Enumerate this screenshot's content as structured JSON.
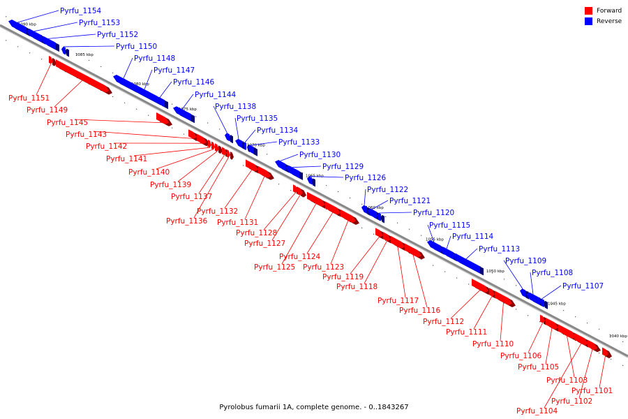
{
  "title": "Pyrolobus fumarii 1A, complete genome. - 0..1843267",
  "legend": {
    "forward": {
      "label": "Forward",
      "color": "#ff0000"
    },
    "reverse": {
      "label": "Reverse",
      "color": "#0000ff"
    }
  },
  "colors": {
    "forward": "#ff0000",
    "reverse": "#0000ff",
    "backbone": "#888888"
  },
  "tick_labels": [
    "1090 kbp",
    "1085 kbp",
    "1080 kbp",
    "1075 kbp",
    "1070 kbp",
    "1065 kbp",
    "1060 kbp",
    "1055 kbp",
    "1050 kbp",
    "1045 kbp",
    "1040 kbp"
  ],
  "genes": [
    {
      "name": "Pyrfu_1154",
      "strand": "reverse"
    },
    {
      "name": "Pyrfu_1153",
      "strand": "reverse"
    },
    {
      "name": "Pyrfu_1152",
      "strand": "reverse"
    },
    {
      "name": "Pyrfu_1150",
      "strand": "reverse"
    },
    {
      "name": "Pyrfu_1148",
      "strand": "reverse"
    },
    {
      "name": "Pyrfu_1147",
      "strand": "reverse"
    },
    {
      "name": "Pyrfu_1146",
      "strand": "reverse"
    },
    {
      "name": "Pyrfu_1144",
      "strand": "reverse"
    },
    {
      "name": "Pyrfu_1138",
      "strand": "reverse"
    },
    {
      "name": "Pyrfu_1135",
      "strand": "reverse"
    },
    {
      "name": "Pyrfu_1134",
      "strand": "reverse"
    },
    {
      "name": "Pyrfu_1133",
      "strand": "reverse"
    },
    {
      "name": "Pyrfu_1130",
      "strand": "reverse"
    },
    {
      "name": "Pyrfu_1129",
      "strand": "reverse"
    },
    {
      "name": "Pyrfu_1126",
      "strand": "reverse"
    },
    {
      "name": "Pyrfu_1122",
      "strand": "reverse"
    },
    {
      "name": "Pyrfu_1121",
      "strand": "reverse"
    },
    {
      "name": "Pyrfu_1120",
      "strand": "reverse"
    },
    {
      "name": "Pyrfu_1115",
      "strand": "reverse"
    },
    {
      "name": "Pyrfu_1114",
      "strand": "reverse"
    },
    {
      "name": "Pyrfu_1113",
      "strand": "reverse"
    },
    {
      "name": "Pyrfu_1109",
      "strand": "reverse"
    },
    {
      "name": "Pyrfu_1108",
      "strand": "reverse"
    },
    {
      "name": "Pyrfu_1107",
      "strand": "reverse"
    },
    {
      "name": "Pyrfu_1151",
      "strand": "forward"
    },
    {
      "name": "Pyrfu_1149",
      "strand": "forward"
    },
    {
      "name": "Pyrfu_1145",
      "strand": "forward"
    },
    {
      "name": "Pyrfu_1143",
      "strand": "forward"
    },
    {
      "name": "Pyrfu_1142",
      "strand": "forward"
    },
    {
      "name": "Pyrfu_1141",
      "strand": "forward"
    },
    {
      "name": "Pyrfu_1140",
      "strand": "forward"
    },
    {
      "name": "Pyrfu_1139",
      "strand": "forward"
    },
    {
      "name": "Pyrfu_1137",
      "strand": "forward"
    },
    {
      "name": "Pyrfu_1136",
      "strand": "forward"
    },
    {
      "name": "Pyrfu_1132",
      "strand": "forward"
    },
    {
      "name": "Pyrfu_1131",
      "strand": "forward"
    },
    {
      "name": "Pyrfu_1128",
      "strand": "forward"
    },
    {
      "name": "Pyrfu_1127",
      "strand": "forward"
    },
    {
      "name": "Pyrfu_1125",
      "strand": "forward"
    },
    {
      "name": "Pyrfu_1124",
      "strand": "forward"
    },
    {
      "name": "Pyrfu_1123",
      "strand": "forward"
    },
    {
      "name": "Pyrfu_1119",
      "strand": "forward"
    },
    {
      "name": "Pyrfu_1118",
      "strand": "forward"
    },
    {
      "name": "Pyrfu_1117",
      "strand": "forward"
    },
    {
      "name": "Pyrfu_1116",
      "strand": "forward"
    },
    {
      "name": "Pyrfu_1112",
      "strand": "forward"
    },
    {
      "name": "Pyrfu_1111",
      "strand": "forward"
    },
    {
      "name": "Pyrfu_1110",
      "strand": "forward"
    },
    {
      "name": "Pyrfu_1106",
      "strand": "forward"
    },
    {
      "name": "Pyrfu_1105",
      "strand": "forward"
    },
    {
      "name": "Pyrfu_1103",
      "strand": "forward"
    },
    {
      "name": "Pyrfu_1104",
      "strand": "forward"
    },
    {
      "name": "Pyrfu_1102",
      "strand": "forward"
    },
    {
      "name": "Pyrfu_1101",
      "strand": "forward"
    }
  ]
}
